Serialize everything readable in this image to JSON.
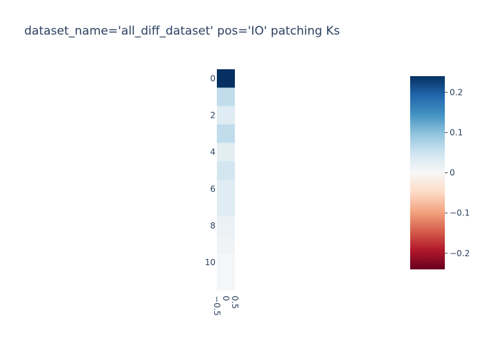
{
  "chart_data": {
    "type": "heatmap",
    "title": "dataset_name='all_diff_dataset' pos='IO' patching Ks",
    "xlabel": "",
    "ylabel": "",
    "x": [
      0
    ],
    "y": [
      0,
      1,
      2,
      3,
      4,
      5,
      6,
      7,
      8,
      9,
      10,
      11
    ],
    "values": [
      [
        0.24
      ],
      [
        0.06
      ],
      [
        0.03
      ],
      [
        0.06
      ],
      [
        0.025
      ],
      [
        0.045
      ],
      [
        0.03
      ],
      [
        0.03
      ],
      [
        0.015
      ],
      [
        0.01
      ],
      [
        0.003
      ],
      [
        0.003
      ]
    ],
    "x_ticks": [
      "−0.5",
      "0",
      "0.5"
    ],
    "y_ticks": [
      "0",
      "2",
      "4",
      "6",
      "8",
      "10"
    ],
    "y_tick_values": [
      0,
      2,
      4,
      6,
      8,
      10
    ],
    "colorbar": {
      "colorscale": "RdBu",
      "zmin": -0.24,
      "zmax": 0.24,
      "ticks": [
        "0.2",
        "0.1",
        "0",
        "−0.1",
        "−0.2"
      ],
      "tick_values": [
        0.2,
        0.1,
        0,
        -0.1,
        -0.2
      ]
    },
    "grid": false
  }
}
